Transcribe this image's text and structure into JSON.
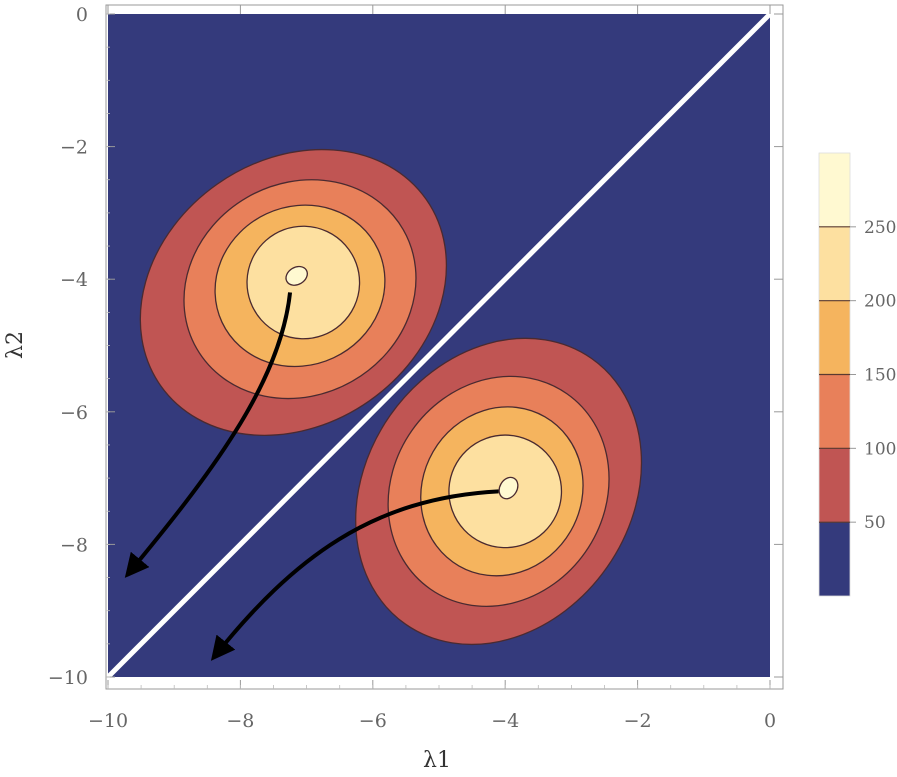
{
  "chart_data": {
    "type": "contour",
    "title": "",
    "xlabel": "λ1",
    "ylabel": "λ2",
    "xlim": [
      -10,
      0
    ],
    "ylim": [
      -10,
      0
    ],
    "x_ticks": [
      {
        "value": -10,
        "label": "−10"
      },
      {
        "value": -8,
        "label": "−8"
      },
      {
        "value": -6,
        "label": "−6"
      },
      {
        "value": -4,
        "label": "−4"
      },
      {
        "value": -2,
        "label": "−2"
      },
      {
        "value": 0,
        "label": "0"
      }
    ],
    "y_ticks": [
      {
        "value": 0,
        "label": "0"
      },
      {
        "value": -2,
        "label": "−2"
      },
      {
        "value": -4,
        "label": "−4"
      },
      {
        "value": -6,
        "label": "−6"
      },
      {
        "value": -8,
        "label": "−8"
      },
      {
        "value": -10,
        "label": "−10"
      }
    ],
    "diagonal_line": {
      "from": [
        -10,
        -10
      ],
      "to": [
        0,
        0
      ],
      "color": "#ffffff"
    },
    "background_color": "#343a7c",
    "contour_levels": [
      {
        "min": 50,
        "max": 100,
        "color": "#c05553"
      },
      {
        "min": 100,
        "max": 150,
        "color": "#e8805a"
      },
      {
        "min": 150,
        "max": 200,
        "color": "#f5b45e"
      },
      {
        "min": 200,
        "max": 250,
        "color": "#fde0a0"
      },
      {
        "min": 250,
        "max": 300,
        "color": "#fff9d1"
      }
    ],
    "peaks": [
      {
        "center": [
          -7.15,
          -3.95
        ],
        "rings": [
          {
            "rx": 2.45,
            "ry": 2.0,
            "rotate_deg": -35,
            "offset": [
              -0.05,
              -0.25
            ]
          },
          {
            "rx": 1.8,
            "ry": 1.6,
            "rotate_deg": -30,
            "offset": [
              0.05,
              -0.2
            ]
          },
          {
            "rx": 1.3,
            "ry": 1.2,
            "rotate_deg": -25,
            "offset": [
              0.05,
              -0.15
            ]
          },
          {
            "rx": 0.85,
            "ry": 0.85,
            "rotate_deg": -20,
            "offset": [
              0.1,
              -0.1
            ]
          },
          {
            "rx": 0.17,
            "ry": 0.13,
            "rotate_deg": -30,
            "offset": [
              0.0,
              0.0
            ]
          }
        ]
      },
      {
        "center": [
          -3.95,
          -7.15
        ],
        "rings": [
          {
            "rx": 2.45,
            "ry": 2.0,
            "rotate_deg": -55,
            "offset": [
              -0.15,
              -0.05
            ]
          },
          {
            "rx": 1.8,
            "ry": 1.6,
            "rotate_deg": -55,
            "offset": [
              -0.15,
              -0.05
            ]
          },
          {
            "rx": 1.3,
            "ry": 1.2,
            "rotate_deg": -60,
            "offset": [
              -0.1,
              -0.05
            ]
          },
          {
            "rx": 0.85,
            "ry": 0.85,
            "rotate_deg": -65,
            "offset": [
              -0.05,
              -0.05
            ]
          },
          {
            "rx": 0.17,
            "ry": 0.13,
            "rotate_deg": -60,
            "offset": [
              0.0,
              0.0
            ]
          }
        ]
      }
    ],
    "arrows": [
      {
        "points": [
          [
            -7.25,
            -4.2
          ],
          [
            -7.4,
            -5.6
          ],
          [
            -8.5,
            -7.0
          ],
          [
            -9.7,
            -8.45
          ]
        ]
      },
      {
        "points": [
          [
            -4.1,
            -7.2
          ],
          [
            -6.0,
            -7.3
          ],
          [
            -7.2,
            -8.2
          ],
          [
            -8.4,
            -9.7
          ]
        ]
      }
    ],
    "colorbar": {
      "range": [
        0,
        300
      ],
      "ticks": [
        {
          "value": 50,
          "label": "50"
        },
        {
          "value": 100,
          "label": "100"
        },
        {
          "value": 150,
          "label": "150"
        },
        {
          "value": 200,
          "label": "200"
        },
        {
          "value": 250,
          "label": "250"
        }
      ]
    }
  }
}
